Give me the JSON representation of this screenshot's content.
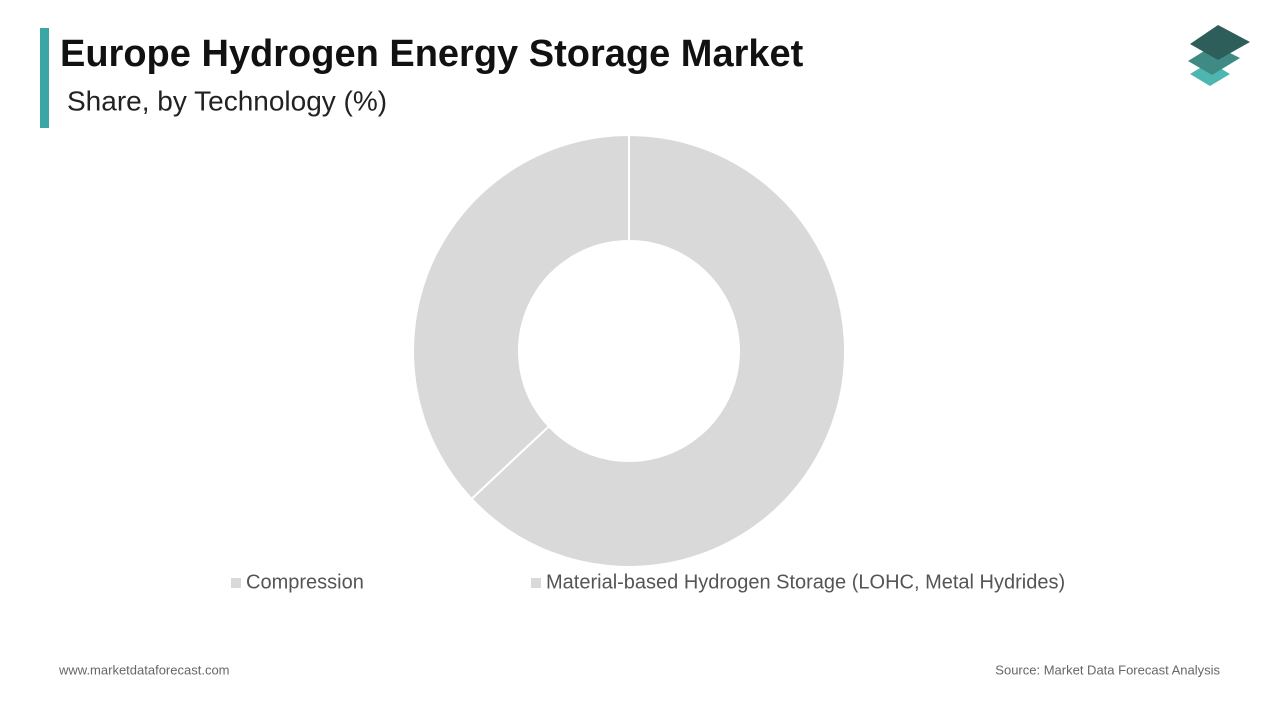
{
  "chart_data": {
    "type": "donut",
    "title": "Europe Hydrogen Energy Storage Market",
    "subtitle": "Share, by Technology (%)",
    "categories": [
      "Compression",
      "Material-based Hydrogen Storage (LOHC, Metal Hydrides)"
    ],
    "values": [
      63,
      37
    ],
    "colors": [
      "#d9d9d9",
      "#d9d9d9"
    ],
    "website": "www.marketdataforecast.com",
    "source": "Source: Market Data Forecast Analysis"
  }
}
